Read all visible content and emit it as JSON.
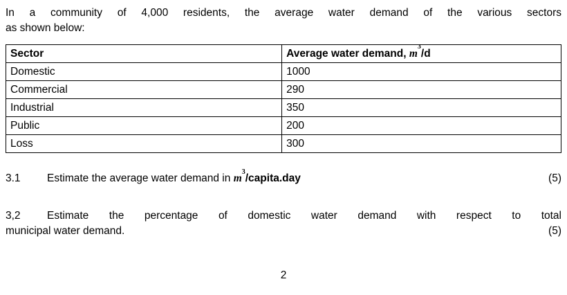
{
  "colors": {
    "background": "#ffffff",
    "text": "#000000",
    "table_border": "#000000"
  },
  "intro": {
    "line1": "In a community of 4,000 residents, the average water demand of the various sectors",
    "line2": "as shown below:"
  },
  "table": {
    "headers": {
      "sector": "Sector",
      "demand_prefix": "Average water demand, ",
      "unit_base": "m",
      "unit_sup": "3",
      "unit_suffix": "/d"
    },
    "rows": [
      {
        "sector": "Domestic",
        "demand": "1000"
      },
      {
        "sector": "Commercial",
        "demand": "290"
      },
      {
        "sector": "Industrial",
        "demand": "350"
      },
      {
        "sector": "Public",
        "demand": "200"
      },
      {
        "sector": "Loss",
        "demand": "300"
      }
    ]
  },
  "questions": {
    "q31": {
      "number": "3.1",
      "text": "Estimate the average water demand in ",
      "unit_base": "m",
      "unit_sup": "3",
      "unit_suffix": "/capita.day",
      "marks": "(5)"
    },
    "q32": {
      "number": "3,2",
      "line1": "Estimate the percentage of domestic water demand with respect to total",
      "line2": "municipal water demand.",
      "marks": "(5)"
    }
  },
  "footer": {
    "page_number": "2"
  }
}
